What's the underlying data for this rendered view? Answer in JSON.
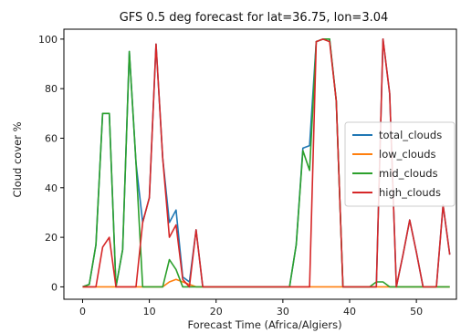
{
  "chart_data": {
    "type": "line",
    "title": "GFS 0.5 deg forecast for lat=36.75, lon=3.04",
    "xlabel": "Forecast Time (Africa/Algiers)",
    "ylabel": "Cloud cover %",
    "xlim": [
      -2.8,
      56
    ],
    "ylim": [
      -5,
      104
    ],
    "xticks": [
      0,
      10,
      20,
      30,
      40,
      50
    ],
    "yticks": [
      0,
      20,
      40,
      60,
      80,
      100
    ],
    "grid": false,
    "legend_position": "right",
    "x": [
      0,
      1,
      2,
      3,
      4,
      5,
      6,
      7,
      8,
      9,
      10,
      11,
      12,
      13,
      14,
      15,
      16,
      17,
      18,
      19,
      20,
      21,
      22,
      23,
      24,
      25,
      26,
      27,
      28,
      29,
      30,
      31,
      32,
      33,
      34,
      35,
      36,
      37,
      38,
      39,
      40,
      41,
      42,
      43,
      44,
      45,
      46,
      47,
      48,
      49,
      50,
      51,
      52,
      53,
      54,
      55
    ],
    "series": [
      {
        "name": "total_clouds",
        "color": "#1f77b4",
        "values": [
          0,
          1,
          17,
          70,
          70,
          0,
          15,
          95,
          50,
          26,
          36,
          98,
          52,
          26,
          31,
          4,
          2,
          23,
          0,
          0,
          0,
          0,
          0,
          0,
          0,
          0,
          0,
          0,
          0,
          0,
          0,
          0,
          17,
          56,
          57,
          99,
          100,
          100,
          75,
          0,
          0,
          0,
          0,
          0,
          0,
          100,
          78,
          0,
          13,
          27,
          14,
          0,
          0,
          0,
          33,
          13
        ]
      },
      {
        "name": "low_clouds",
        "color": "#ff7f0e",
        "values": [
          0,
          0,
          0,
          0,
          0,
          0,
          0,
          0,
          0,
          0,
          0,
          0,
          0,
          2,
          3,
          2,
          1,
          0,
          0,
          0,
          0,
          0,
          0,
          0,
          0,
          0,
          0,
          0,
          0,
          0,
          0,
          0,
          0,
          0,
          0,
          0,
          0,
          0,
          0,
          0,
          0,
          0,
          0,
          0,
          0,
          0,
          0,
          0,
          0,
          0,
          0,
          0,
          0,
          0,
          0,
          0
        ]
      },
      {
        "name": "mid_clouds",
        "color": "#2ca02c",
        "values": [
          0,
          1,
          17,
          70,
          70,
          0,
          15,
          95,
          50,
          0,
          0,
          0,
          0,
          11,
          7,
          0,
          0,
          0,
          0,
          0,
          0,
          0,
          0,
          0,
          0,
          0,
          0,
          0,
          0,
          0,
          0,
          0,
          17,
          55,
          47,
          99,
          100,
          100,
          75,
          0,
          0,
          0,
          0,
          0,
          2,
          2,
          0,
          0,
          0,
          0,
          0,
          0,
          0,
          0,
          0,
          0
        ]
      },
      {
        "name": "high_clouds",
        "color": "#d62728",
        "values": [
          0,
          0,
          0,
          16,
          20,
          0,
          0,
          0,
          0,
          26,
          36,
          98,
          52,
          20,
          25,
          3,
          0,
          23,
          0,
          0,
          0,
          0,
          0,
          0,
          0,
          0,
          0,
          0,
          0,
          0,
          0,
          0,
          0,
          0,
          0,
          99,
          100,
          99,
          75,
          0,
          0,
          0,
          0,
          0,
          0,
          100,
          78,
          0,
          13,
          27,
          14,
          0,
          0,
          0,
          33,
          13
        ]
      }
    ]
  }
}
